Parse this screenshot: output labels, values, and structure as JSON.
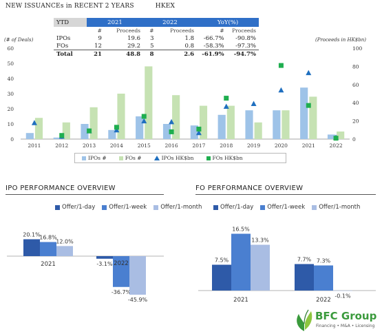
{
  "header": {
    "title": "NEW ISSUANCEs in RECENT 2 YEARS",
    "exchange": "HKEX"
  },
  "summary_table": {
    "ytd_label": "YTD",
    "year_a": "2021",
    "year_b": "2022",
    "yoy_label": "YoY(%)",
    "sub_count": "#",
    "sub_proceeds": "Proceeds",
    "rows": [
      {
        "label": "IPOs",
        "a_count": "9",
        "a_proc": "19.6",
        "b_count": "3",
        "b_proc": "1.8",
        "yoy_count": "-66.7%",
        "yoy_proc": "-90.8%"
      },
      {
        "label": "FOs",
        "a_count": "12",
        "a_proc": "29.2",
        "b_count": "5",
        "b_proc": "0.8",
        "yoy_count": "-58.3%",
        "yoy_proc": "-97.3%"
      },
      {
        "label": "Total",
        "a_count": "21",
        "a_proc": "48.8",
        "b_count": "8",
        "b_proc": "2.6",
        "yoy_count": "-61.9%",
        "yoy_proc": "-94.7%"
      }
    ]
  },
  "axis_notes": {
    "left": "(# of Deals)",
    "right": "(Proceeds in HK$bn)"
  },
  "colors": {
    "ipo_bar": "#9ec3e8",
    "fo_bar": "#c6e2b3",
    "ipo_marker": "#1f6fbf",
    "fo_marker": "#1fae4f",
    "perf_dark": "#2e5aa8",
    "perf_mid": "#4a7fd0",
    "perf_light": "#a9bde3",
    "header_blue": "#2f6fc7"
  },
  "chart_data": [
    {
      "type": "bar",
      "categories": [
        "2011",
        "2012",
        "2013",
        "2014",
        "2015",
        "2016",
        "2017",
        "2018",
        "2019",
        "2020",
        "2021",
        "2022"
      ],
      "y_left_ticks": [
        "0",
        "10",
        "20",
        "30",
        "40",
        "50",
        "60"
      ],
      "y_left_lim": [
        0,
        60
      ],
      "y_right_ticks": [
        "0",
        "20",
        "40",
        "60",
        "80",
        "100"
      ],
      "y_right_lim": [
        0,
        100
      ],
      "series": [
        {
          "name": "IPOs #",
          "kind": "bar",
          "axis": "left",
          "values": [
            4,
            1,
            10,
            6,
            15,
            10,
            9,
            16,
            19,
            19,
            34,
            3
          ]
        },
        {
          "name": "FOs #",
          "kind": "bar",
          "axis": "left",
          "values": [
            14,
            11,
            21,
            30,
            48,
            29,
            22,
            22,
            11,
            19,
            28,
            5
          ]
        },
        {
          "name": "IPOs HK$bn",
          "kind": "marker",
          "axis": "right",
          "values": [
            18,
            3,
            9,
            10,
            20,
            19,
            7,
            36,
            39,
            54,
            73,
            2
          ]
        },
        {
          "name": "FOs HK$bn",
          "kind": "marker",
          "axis": "right",
          "values": [
            null,
            4,
            9,
            13,
            25,
            8,
            11,
            45,
            null,
            81,
            37,
            1
          ]
        }
      ],
      "legend": [
        "IPOs #",
        "FOs #",
        "IPOs HK$bn",
        "FOs HK$bn"
      ],
      "legend_position": "bottom"
    },
    {
      "type": "bar",
      "title": "IPO PERFORMANCE OVERVIEW",
      "categories": [
        "2021",
        "2022"
      ],
      "series": [
        {
          "name": "Offer/1-day",
          "values": [
            20.1,
            -3.1
          ],
          "labels": [
            "20.1%",
            "-3.1%"
          ]
        },
        {
          "name": "Offer/1-week",
          "values": [
            16.8,
            -36.7
          ],
          "labels": [
            "16.8%",
            "-36.7%"
          ]
        },
        {
          "name": "Offer/1-month",
          "values": [
            12.0,
            -45.9
          ],
          "labels": [
            "12.0%",
            "-45.9%"
          ]
        }
      ]
    },
    {
      "type": "bar",
      "title": "FO PERFORMANCE OVERVIEW",
      "categories": [
        "2021",
        "2022"
      ],
      "series": [
        {
          "name": "Offer/1-day",
          "values": [
            7.5,
            7.7
          ],
          "labels": [
            "7.5%",
            "7.7%"
          ]
        },
        {
          "name": "Offer/1-week",
          "values": [
            16.5,
            7.3
          ],
          "labels": [
            "16.5%",
            "7.3%"
          ]
        },
        {
          "name": "Offer/1-month",
          "values": [
            13.3,
            -0.1
          ],
          "labels": [
            "13.3%",
            "-0.1%"
          ]
        }
      ]
    }
  ],
  "logo": {
    "name": "BFC Group",
    "tagline": "Financing • M&A • Licensing"
  }
}
